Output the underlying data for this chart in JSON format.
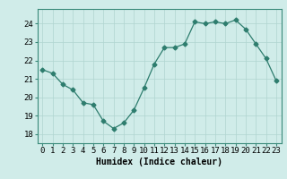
{
  "x": [
    0,
    1,
    2,
    3,
    4,
    5,
    6,
    7,
    8,
    9,
    10,
    11,
    12,
    13,
    14,
    15,
    16,
    17,
    18,
    19,
    20,
    21,
    22,
    23
  ],
  "y": [
    21.5,
    21.3,
    20.7,
    20.4,
    19.7,
    19.6,
    18.7,
    18.3,
    18.6,
    19.3,
    20.5,
    21.8,
    22.7,
    22.7,
    22.9,
    24.1,
    24.0,
    24.1,
    24.0,
    24.2,
    23.7,
    22.9,
    22.1,
    20.9
  ],
  "line_color": "#2e7d6e",
  "marker": "D",
  "marker_size": 2.5,
  "bg_color": "#d0ece9",
  "grid_color": "#b0d4d0",
  "xlabel": "Humidex (Indice chaleur)",
  "ylim": [
    17.5,
    24.8
  ],
  "xlim": [
    -0.5,
    23.5
  ],
  "yticks": [
    18,
    19,
    20,
    21,
    22,
    23,
    24
  ],
  "xticks": [
    0,
    1,
    2,
    3,
    4,
    5,
    6,
    7,
    8,
    9,
    10,
    11,
    12,
    13,
    14,
    15,
    16,
    17,
    18,
    19,
    20,
    21,
    22,
    23
  ],
  "label_fontsize": 7,
  "tick_fontsize": 6.5
}
